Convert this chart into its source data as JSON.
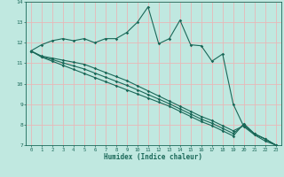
{
  "xlabel": "Humidex (Indice chaleur)",
  "background_color": "#c0e8e0",
  "grid_color": "#e8b8b8",
  "line_color": "#1a6858",
  "x_values": [
    0,
    1,
    2,
    3,
    4,
    5,
    6,
    7,
    8,
    9,
    10,
    11,
    12,
    13,
    14,
    15,
    16,
    17,
    18,
    19,
    20,
    21,
    22,
    23
  ],
  "series": [
    [
      11.6,
      11.9,
      12.1,
      12.2,
      12.1,
      12.2,
      12.0,
      12.2,
      12.2,
      12.5,
      13.0,
      13.75,
      11.95,
      12.2,
      13.1,
      11.9,
      11.85,
      11.1,
      11.45,
      9.0,
      7.9,
      7.5,
      7.2,
      7.0
    ],
    [
      11.6,
      11.35,
      11.25,
      11.15,
      11.05,
      10.95,
      10.75,
      10.55,
      10.35,
      10.15,
      9.9,
      9.65,
      9.4,
      9.15,
      8.9,
      8.65,
      8.4,
      8.2,
      7.95,
      7.7,
      7.95,
      7.55,
      7.3,
      7.0
    ],
    [
      11.6,
      11.3,
      11.1,
      10.9,
      10.7,
      10.5,
      10.3,
      10.1,
      9.9,
      9.7,
      9.5,
      9.3,
      9.1,
      8.9,
      8.65,
      8.4,
      8.15,
      7.95,
      7.7,
      7.45,
      8.05,
      7.55,
      7.3,
      7.0
    ],
    [
      11.6,
      11.32,
      11.18,
      11.02,
      10.87,
      10.72,
      10.52,
      10.32,
      10.12,
      9.92,
      9.7,
      9.47,
      9.25,
      9.02,
      8.77,
      8.52,
      8.27,
      8.07,
      7.82,
      7.57,
      8.0,
      7.55,
      7.3,
      7.0
    ]
  ],
  "ylim": [
    7,
    14
  ],
  "xlim": [
    -0.5,
    23.5
  ],
  "yticks": [
    7,
    8,
    9,
    10,
    11,
    12,
    13,
    14
  ],
  "xticks": [
    0,
    1,
    2,
    3,
    4,
    5,
    6,
    7,
    8,
    9,
    10,
    11,
    12,
    13,
    14,
    15,
    16,
    17,
    18,
    19,
    20,
    21,
    22,
    23
  ]
}
